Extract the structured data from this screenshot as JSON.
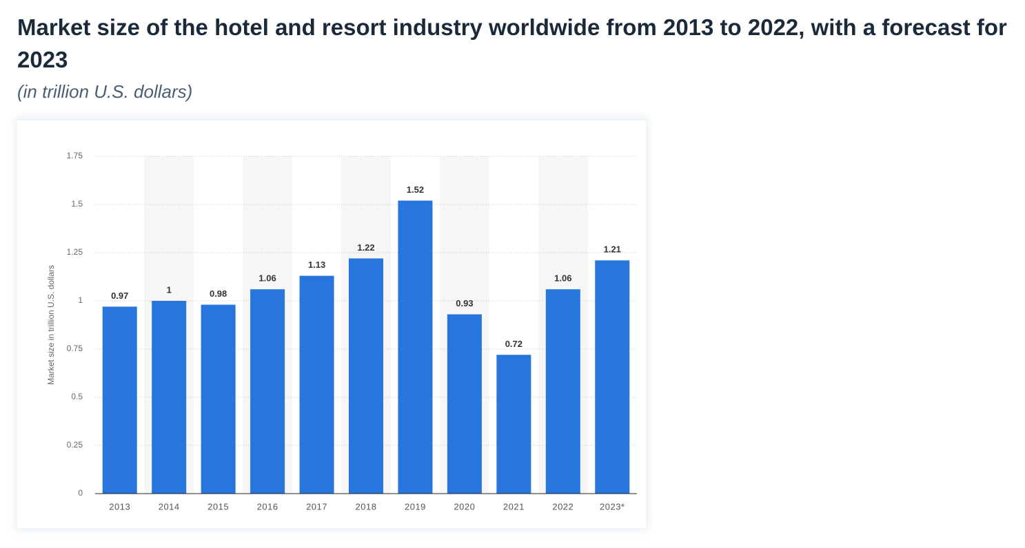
{
  "chart_data": {
    "type": "bar",
    "title": "Market size of the hotel and resort industry worldwide from 2013 to 2022, with a forecast for 2023",
    "subtitle": "(in trillion U.S. dollars)",
    "y_label": "Market size in trillion U.S. dollars",
    "categories": [
      "2013",
      "2014",
      "2015",
      "2016",
      "2017",
      "2018",
      "2019",
      "2020",
      "2021",
      "2022",
      "2023*"
    ],
    "values": [
      0.97,
      1,
      0.98,
      1.06,
      1.13,
      1.22,
      1.52,
      0.93,
      0.72,
      1.06,
      1.21
    ],
    "color": "#2876dd",
    "ylim": [
      0,
      1.75
    ],
    "yticks": [
      0,
      0.25,
      0.5,
      0.75,
      1,
      1.25,
      1.5,
      1.75
    ],
    "grid": true
  }
}
